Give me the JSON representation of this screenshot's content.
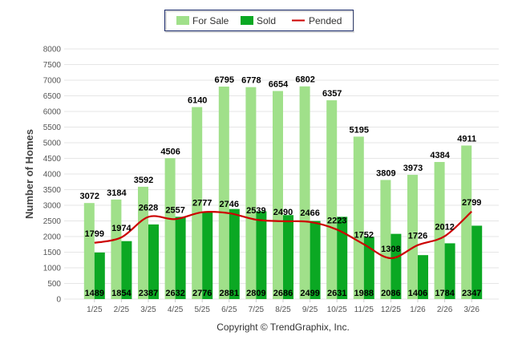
{
  "chart_data": {
    "type": "bar",
    "title": "",
    "xlabel": "",
    "ylabel": "Number of Homes",
    "ylim": [
      0,
      8000
    ],
    "yticks": [
      0,
      500,
      1000,
      1500,
      2000,
      2500,
      3000,
      3500,
      4000,
      4500,
      5000,
      5500,
      6000,
      6500,
      7000,
      7500,
      8000
    ],
    "grid": true,
    "legend_placement": "top-center",
    "categories": [
      "1/25",
      "2/25",
      "3/25",
      "4/25",
      "5/25",
      "6/25",
      "7/25",
      "8/25",
      "9/25",
      "10/25",
      "11/25",
      "12/25",
      "1/26",
      "2/26",
      "3/26"
    ],
    "series": [
      {
        "name": "For Sale",
        "type": "bar",
        "color": "#a0e08a",
        "values": [
          3072,
          3184,
          3592,
          4506,
          6140,
          6795,
          6778,
          6654,
          6802,
          6357,
          5195,
          3809,
          3973,
          4384,
          4911
        ]
      },
      {
        "name": "Sold",
        "type": "bar",
        "color": "#0ba823",
        "values": [
          1489,
          1854,
          2387,
          2632,
          2776,
          2881,
          2809,
          2686,
          2499,
          2631,
          1988,
          2086,
          1406,
          1784,
          2347
        ]
      },
      {
        "name": "Pended",
        "type": "line",
        "color": "#cc0000",
        "values": [
          1799,
          1974,
          2628,
          2557,
          2777,
          2746,
          2539,
          2490,
          2466,
          2223,
          1752,
          1308,
          1726,
          2012,
          2799
        ]
      }
    ]
  },
  "footer": {
    "copyright": "Copyright © TrendGraphix, Inc."
  }
}
